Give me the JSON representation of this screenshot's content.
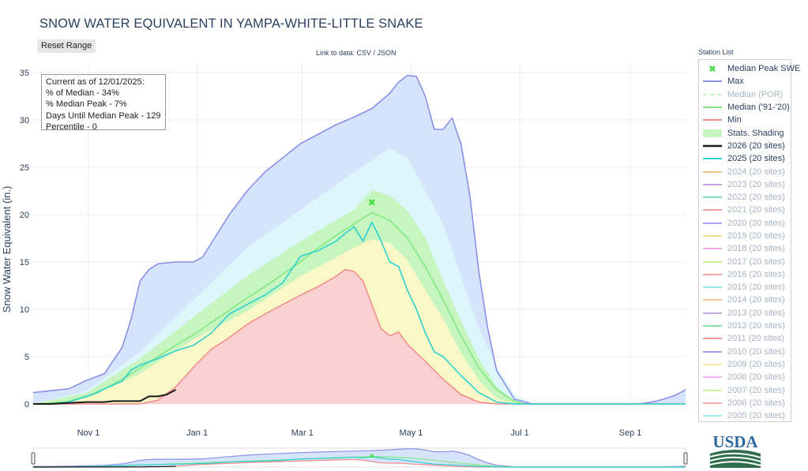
{
  "title": "SNOW WATER EQUIVALENT IN YAMPA-WHITE-LITTLE SNAKE",
  "reset_button": "Reset Range",
  "data_link": "Link to data: CSV / JSON",
  "station_list_label": "Station List",
  "stats_box": {
    "line1": "Current as of 12/01/2025:",
    "line2": "% of Median - 34%",
    "line3": "% Median Peak - 7%",
    "line4": "Days Until Median Peak - 129",
    "line5": "Percentile - 0"
  },
  "logo_text": "USDA",
  "colors": {
    "max": "#8b8fe8",
    "median_por": "#c8f0c8",
    "median_9120": "#7ee87e",
    "min": "#f08a8a",
    "y2026": "#1a1a1a",
    "y2025": "#2fd0d0",
    "peak_marker": "#3ee03e",
    "band_outer_blue": "#d6e4fb",
    "band_cyan": "#dcf6fb",
    "band_green": "#c6f5c0",
    "band_yellow": "#fbf8c8",
    "band_red": "#fbd0d0"
  },
  "legend": [
    {
      "label": "Median Peak SWE",
      "icon": "x-marker",
      "color": "#3ee03e",
      "faded": false
    },
    {
      "label": "Max",
      "icon": "line",
      "color": "#8b8fe8",
      "faded": false
    },
    {
      "label": "Median (POR)",
      "icon": "dash",
      "color": "#c8f0c8",
      "faded": true
    },
    {
      "label": "Median ('91-'20)",
      "icon": "line",
      "color": "#7ee87e",
      "faded": false
    },
    {
      "label": "Min",
      "icon": "line",
      "color": "#f08a8a",
      "faded": false
    },
    {
      "label": "Stats. Shading",
      "icon": "band",
      "color": "#c6f5c0",
      "faded": false
    },
    {
      "label": "2026 (20 sites)",
      "icon": "line-bold",
      "color": "#1a1a1a",
      "faded": false
    },
    {
      "label": "2025 (20 sites)",
      "icon": "line",
      "color": "#2fd0d0",
      "faded": false
    },
    {
      "label": "2024 (20 sites)",
      "icon": "line",
      "color": "#f7c08a",
      "faded": true
    },
    {
      "label": "2023 (20 sites)",
      "icon": "line",
      "color": "#c7a3e8",
      "faded": true
    },
    {
      "label": "2022 (20 sites)",
      "icon": "line",
      "color": "#7fe0b0",
      "faded": true
    },
    {
      "label": "2021 (20 sites)",
      "icon": "line",
      "color": "#f0a0a0",
      "faded": true
    },
    {
      "label": "2020 (20 sites)",
      "icon": "line",
      "color": "#a8a8f0",
      "faded": true
    },
    {
      "label": "2019 (20 sites)",
      "icon": "line",
      "color": "#f8e090",
      "faded": true
    },
    {
      "label": "2018 (20 sites)",
      "icon": "line",
      "color": "#f0a8f0",
      "faded": true
    },
    {
      "label": "2017 (20 sites)",
      "icon": "line",
      "color": "#c8ec90",
      "faded": true
    },
    {
      "label": "2016 (20 sites)",
      "icon": "line",
      "color": "#f0a8a8",
      "faded": true
    },
    {
      "label": "2015 (20 sites)",
      "icon": "line",
      "color": "#98e8e8",
      "faded": true
    },
    {
      "label": "2014 (20 sites)",
      "icon": "line",
      "color": "#f8c898",
      "faded": true
    },
    {
      "label": "2013 (20 sites)",
      "icon": "line",
      "color": "#c0a8e0",
      "faded": true
    },
    {
      "label": "2012 (20 sites)",
      "icon": "line",
      "color": "#88e0a8",
      "faded": true
    },
    {
      "label": "2011 (20 sites)",
      "icon": "line",
      "color": "#f09898",
      "faded": true
    },
    {
      "label": "2010 (20 sites)",
      "icon": "line",
      "color": "#a0a0f0",
      "faded": true
    },
    {
      "label": "2009 (20 sites)",
      "icon": "line",
      "color": "#f8e8a0",
      "faded": true
    },
    {
      "label": "2008 (20 sites)",
      "icon": "line",
      "color": "#f8b0f8",
      "faded": true
    },
    {
      "label": "2007 (20 sites)",
      "icon": "line",
      "color": "#c8f0a0",
      "faded": true
    },
    {
      "label": "2006 (20 sites)",
      "icon": "line",
      "color": "#f8b0b0",
      "faded": true
    },
    {
      "label": "2005 (20 sites)",
      "icon": "line",
      "color": "#a0eef0",
      "faded": true
    }
  ],
  "chart_data": {
    "type": "line",
    "title": "SNOW WATER EQUIVALENT IN YAMPA-WHITE-LITTLE SNAKE",
    "ylabel": "Snow Water Equivalent (in.)",
    "xlabel": "",
    "ylim": [
      0,
      36
    ],
    "yticks": [
      0,
      5,
      10,
      15,
      20,
      25,
      30,
      35
    ],
    "xticks": [
      {
        "label": "Nov 1",
        "day": 31
      },
      {
        "label": "Jan 1",
        "day": 92
      },
      {
        "label": "Mar 1",
        "day": 151
      },
      {
        "label": "May 1",
        "day": 212
      },
      {
        "label": "Jul 1",
        "day": 273
      },
      {
        "label": "Sep 1",
        "day": 335
      }
    ],
    "x_unit": "days since Oct 1",
    "xlim": [
      0,
      366
    ],
    "grid": true,
    "legend_position": "right",
    "median_peak": {
      "x": 190,
      "y": 21.3
    },
    "series": [
      {
        "name": "Max",
        "x": [
          0,
          10,
          20,
          30,
          40,
          50,
          55,
          60,
          65,
          70,
          80,
          90,
          95,
          100,
          110,
          120,
          130,
          140,
          150,
          160,
          170,
          180,
          190,
          200,
          205,
          210,
          215,
          220,
          225,
          230,
          235,
          240,
          245,
          250,
          255,
          260,
          270,
          280,
          290,
          300,
          310,
          320,
          330,
          340,
          350,
          360,
          366
        ],
        "y": [
          1.2,
          1.4,
          1.6,
          2.5,
          3.2,
          6,
          9,
          13,
          14.2,
          14.8,
          15,
          15,
          15.5,
          17,
          20,
          22.5,
          24.5,
          26,
          27.5,
          28.5,
          29.5,
          30.3,
          31.2,
          32.8,
          34,
          34.7,
          34.6,
          32.5,
          29,
          29,
          30.2,
          27.5,
          22,
          14,
          8,
          3.5,
          0.5,
          0,
          0,
          0,
          0,
          0,
          0,
          0,
          0.3,
          0.9,
          1.5
        ]
      },
      {
        "name": "Median ('91-'20)",
        "x": [
          0,
          10,
          20,
          30,
          40,
          50,
          60,
          70,
          80,
          90,
          100,
          110,
          120,
          130,
          140,
          150,
          160,
          170,
          180,
          190,
          200,
          210,
          220,
          230,
          240,
          250,
          260,
          270,
          275,
          280,
          290,
          300,
          310,
          320,
          330,
          340,
          350,
          360,
          366
        ],
        "y": [
          0,
          0.1,
          0.3,
          0.8,
          1.6,
          2.6,
          3.8,
          5,
          6.2,
          7.3,
          8.6,
          9.9,
          11.2,
          12.4,
          13.7,
          15,
          16.5,
          17.8,
          19,
          20.2,
          19.4,
          17.5,
          14.5,
          11,
          7.2,
          3.8,
          1.5,
          0.3,
          0,
          0,
          0,
          0,
          0,
          0,
          0,
          0,
          0,
          0,
          0
        ]
      },
      {
        "name": "Min",
        "x": [
          0,
          30,
          60,
          70,
          80,
          90,
          100,
          110,
          120,
          130,
          140,
          150,
          160,
          170,
          175,
          180,
          185,
          190,
          195,
          200,
          205,
          210,
          220,
          230,
          240,
          250,
          260,
          270,
          280,
          290,
          300,
          310,
          320,
          330,
          340,
          350,
          360,
          366
        ],
        "y": [
          0,
          0,
          0,
          0.4,
          1.8,
          3.9,
          5.8,
          7,
          8.4,
          9.5,
          10.5,
          11.5,
          12.4,
          13.5,
          14.2,
          14,
          13,
          10.5,
          8,
          7.2,
          7.6,
          6.3,
          4.5,
          2.6,
          1,
          0.2,
          0,
          0,
          0,
          0,
          0,
          0,
          0,
          0,
          0,
          0,
          0,
          0
        ]
      },
      {
        "name": "2025 (20 sites)",
        "x": [
          0,
          10,
          20,
          30,
          35,
          40,
          50,
          55,
          60,
          70,
          80,
          90,
          100,
          110,
          120,
          130,
          140,
          150,
          160,
          170,
          175,
          180,
          185,
          190,
          195,
          200,
          205,
          210,
          215,
          220,
          225,
          230,
          240,
          250,
          260,
          270,
          280,
          290,
          300,
          310,
          320,
          330,
          340,
          350,
          360,
          366
        ],
        "y": [
          0,
          0,
          0.2,
          0.8,
          1.1,
          1.6,
          2.4,
          3.6,
          4.1,
          4.8,
          5.6,
          6.2,
          7.5,
          9.5,
          10.5,
          11.5,
          12.8,
          15.6,
          16.2,
          17.2,
          18,
          18.7,
          17.2,
          19.2,
          17.3,
          15,
          14.5,
          12,
          10,
          7.5,
          5.5,
          5,
          3,
          1.2,
          0.2,
          0,
          0,
          0,
          0,
          0,
          0,
          0,
          0,
          0,
          0,
          0
        ]
      },
      {
        "name": "2026 (20 sites)",
        "x": [
          0,
          10,
          20,
          30,
          40,
          45,
          50,
          60,
          65,
          70,
          75,
          80
        ],
        "y": [
          0,
          0,
          0.1,
          0.2,
          0.2,
          0.3,
          0.3,
          0.3,
          0.8,
          0.8,
          1,
          1.5
        ]
      }
    ],
    "bands": [
      {
        "name": "outer",
        "upper": "Max",
        "lower": "Min"
      },
      {
        "name": "90th-70th",
        "x": [
          0,
          30,
          60,
          90,
          120,
          150,
          180,
          200,
          210,
          220,
          230,
          240,
          250,
          260,
          270,
          280,
          290
        ],
        "upper": [
          0,
          1.4,
          5.5,
          11,
          16.5,
          20.5,
          24.5,
          27,
          26,
          22.5,
          19,
          13.5,
          8,
          4,
          1,
          0,
          0
        ]
      },
      {
        "name": "70th-50th",
        "x": [
          0,
          30,
          60,
          90,
          120,
          150,
          180,
          190,
          200,
          210,
          220,
          230,
          240,
          250,
          260,
          270,
          280
        ],
        "upper": [
          0,
          1.2,
          4.8,
          9.2,
          13.5,
          17.2,
          20.5,
          22.6,
          22,
          20.4,
          17.6,
          13,
          8.8,
          4.8,
          1.8,
          0.3,
          0
        ]
      },
      {
        "name": "50th-30th",
        "x": [
          0,
          30,
          60,
          90,
          120,
          150,
          180,
          190,
          200,
          210,
          220,
          230,
          240,
          250,
          260,
          270
        ],
        "upper": [
          0,
          0.6,
          3.2,
          6.8,
          9.8,
          13.5,
          16.5,
          17.4,
          17,
          15.2,
          12,
          9,
          5.4,
          2.5,
          0.6,
          0
        ]
      }
    ]
  }
}
